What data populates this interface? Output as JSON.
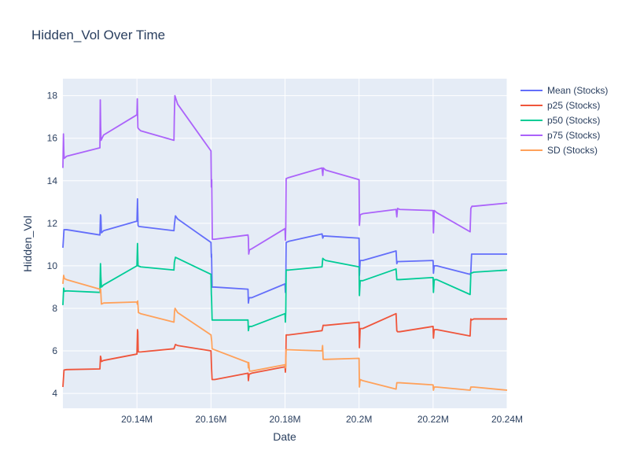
{
  "chart_data": {
    "type": "line",
    "title": "Hidden_Vol Over Time",
    "xlabel": "Date",
    "ylabel": "Hidden_Vol",
    "xlim": [
      20120000,
      20240000
    ],
    "ylim": [
      3.3,
      18.8
    ],
    "x_ticks": [
      {
        "value": 20140000,
        "label": "20.14M"
      },
      {
        "value": 20160000,
        "label": "20.16M"
      },
      {
        "value": 20180000,
        "label": "20.18M"
      },
      {
        "value": 20200000,
        "label": "20.2M"
      },
      {
        "value": 20220000,
        "label": "20.22M"
      },
      {
        "value": 20240000,
        "label": "20.24M"
      }
    ],
    "y_ticks": [
      {
        "value": 4,
        "label": "4"
      },
      {
        "value": 6,
        "label": "6"
      },
      {
        "value": 8,
        "label": "8"
      },
      {
        "value": 10,
        "label": "10"
      },
      {
        "value": 12,
        "label": "12"
      },
      {
        "value": 14,
        "label": "14"
      },
      {
        "value": 16,
        "label": "16"
      },
      {
        "value": 18,
        "label": "18"
      }
    ],
    "grid": true,
    "legend_position": "top-right",
    "colors": {
      "plot_bg": "#e5ecf6",
      "grid": "#ffffff",
      "text": "#2a3f5f"
    },
    "series": [
      {
        "name": "Mean (Stocks)",
        "color": "#636efa",
        "points": [
          [
            20120000,
            10.85
          ],
          [
            20120300,
            11.7
          ],
          [
            20121000,
            11.7
          ],
          [
            20130000,
            11.45
          ],
          [
            20130150,
            12.4
          ],
          [
            20130250,
            12.35
          ],
          [
            20130400,
            11.55
          ],
          [
            20131000,
            11.65
          ],
          [
            20140000,
            12.1
          ],
          [
            20140150,
            13.15
          ],
          [
            20140300,
            11.9
          ],
          [
            20140500,
            11.85
          ],
          [
            20150000,
            11.65
          ],
          [
            20150100,
            11.9
          ],
          [
            20150400,
            12.35
          ],
          [
            20151000,
            12.2
          ],
          [
            20160000,
            11.1
          ],
          [
            20160100,
            10.4
          ],
          [
            20160150,
            10.55
          ],
          [
            20160300,
            9.0
          ],
          [
            20161000,
            9.0
          ],
          [
            20170000,
            8.9
          ],
          [
            20170100,
            8.25
          ],
          [
            20170300,
            8.5
          ],
          [
            20171000,
            8.5
          ],
          [
            20180000,
            9.15
          ],
          [
            20180100,
            8.75
          ],
          [
            20180200,
            9.25
          ],
          [
            20180300,
            11.1
          ],
          [
            20181000,
            11.15
          ],
          [
            20190000,
            11.5
          ],
          [
            20190200,
            11.3
          ],
          [
            20190400,
            11.4
          ],
          [
            20191000,
            11.4
          ],
          [
            20200000,
            11.3
          ],
          [
            20200100,
            9.55
          ],
          [
            20200300,
            10.25
          ],
          [
            20201000,
            10.25
          ],
          [
            20210000,
            10.7
          ],
          [
            20210200,
            10.1
          ],
          [
            20210400,
            10.2
          ],
          [
            20211000,
            10.2
          ],
          [
            20220000,
            10.25
          ],
          [
            20220100,
            9.65
          ],
          [
            20220300,
            10.0
          ],
          [
            20221000,
            10.0
          ],
          [
            20230000,
            9.6
          ],
          [
            20230200,
            9.7
          ],
          [
            20230400,
            10.55
          ],
          [
            20231000,
            10.55
          ],
          [
            20240000,
            10.55
          ]
        ]
      },
      {
        "name": "p25 (Stocks)",
        "color": "#ef553b",
        "points": [
          [
            20120000,
            4.3
          ],
          [
            20120300,
            5.1
          ],
          [
            20121000,
            5.12
          ],
          [
            20130000,
            5.15
          ],
          [
            20130150,
            5.75
          ],
          [
            20130250,
            5.7
          ],
          [
            20130400,
            5.5
          ],
          [
            20131000,
            5.55
          ],
          [
            20140000,
            5.85
          ],
          [
            20140150,
            7.0
          ],
          [
            20140250,
            6.9
          ],
          [
            20140350,
            5.95
          ],
          [
            20141000,
            5.95
          ],
          [
            20150000,
            6.1
          ],
          [
            20150100,
            6.15
          ],
          [
            20150400,
            6.3
          ],
          [
            20151000,
            6.25
          ],
          [
            20160000,
            6.0
          ],
          [
            20160150,
            5.2
          ],
          [
            20160300,
            4.65
          ],
          [
            20161000,
            4.65
          ],
          [
            20170000,
            4.95
          ],
          [
            20170100,
            4.6
          ],
          [
            20170300,
            4.9
          ],
          [
            20171000,
            4.95
          ],
          [
            20180000,
            5.25
          ],
          [
            20180100,
            5.0
          ],
          [
            20180200,
            5.3
          ],
          [
            20180300,
            6.75
          ],
          [
            20181000,
            6.75
          ],
          [
            20190000,
            6.95
          ],
          [
            20190300,
            7.2
          ],
          [
            20191000,
            7.2
          ],
          [
            20200000,
            7.35
          ],
          [
            20200100,
            6.15
          ],
          [
            20200300,
            7.05
          ],
          [
            20201000,
            7.05
          ],
          [
            20210000,
            7.75
          ],
          [
            20210200,
            6.95
          ],
          [
            20210400,
            6.9
          ],
          [
            20211000,
            6.9
          ],
          [
            20220000,
            7.15
          ],
          [
            20220100,
            6.6
          ],
          [
            20220300,
            7.0
          ],
          [
            20221000,
            7.0
          ],
          [
            20230000,
            6.7
          ],
          [
            20230200,
            7.5
          ],
          [
            20230400,
            7.45
          ],
          [
            20231000,
            7.5
          ],
          [
            20240000,
            7.5
          ]
        ]
      },
      {
        "name": "p50 (Stocks)",
        "color": "#00cc96",
        "points": [
          [
            20120000,
            8.15
          ],
          [
            20120200,
            8.95
          ],
          [
            20120400,
            8.8
          ],
          [
            20121000,
            8.82
          ],
          [
            20130000,
            8.75
          ],
          [
            20130150,
            10.1
          ],
          [
            20130250,
            9.5
          ],
          [
            20130400,
            9.0
          ],
          [
            20131000,
            9.1
          ],
          [
            20140000,
            10.0
          ],
          [
            20140150,
            11.05
          ],
          [
            20140300,
            10.0
          ],
          [
            20141000,
            9.95
          ],
          [
            20150000,
            9.8
          ],
          [
            20150100,
            10.15
          ],
          [
            20150400,
            10.4
          ],
          [
            20151000,
            10.35
          ],
          [
            20160000,
            9.6
          ],
          [
            20160100,
            8.65
          ],
          [
            20160150,
            8.5
          ],
          [
            20160300,
            7.45
          ],
          [
            20161000,
            7.45
          ],
          [
            20170000,
            7.45
          ],
          [
            20170100,
            6.95
          ],
          [
            20170300,
            7.15
          ],
          [
            20171000,
            7.15
          ],
          [
            20180000,
            7.75
          ],
          [
            20180100,
            7.35
          ],
          [
            20180200,
            7.85
          ],
          [
            20180300,
            9.8
          ],
          [
            20181000,
            9.8
          ],
          [
            20190000,
            9.95
          ],
          [
            20190200,
            10.35
          ],
          [
            20190500,
            10.3
          ],
          [
            20191000,
            10.25
          ],
          [
            20200000,
            9.95
          ],
          [
            20200100,
            8.6
          ],
          [
            20200300,
            9.3
          ],
          [
            20201000,
            9.3
          ],
          [
            20210000,
            9.85
          ],
          [
            20210200,
            9.35
          ],
          [
            20211000,
            9.35
          ],
          [
            20220000,
            9.45
          ],
          [
            20220100,
            8.75
          ],
          [
            20220300,
            9.35
          ],
          [
            20221000,
            9.35
          ],
          [
            20230000,
            8.65
          ],
          [
            20230200,
            9.65
          ],
          [
            20231000,
            9.7
          ],
          [
            20240000,
            9.8
          ]
        ]
      },
      {
        "name": "p75 (Stocks)",
        "color": "#ab63fa",
        "points": [
          [
            20120000,
            14.6
          ],
          [
            20120150,
            16.2
          ],
          [
            20120250,
            15.4
          ],
          [
            20120350,
            15.05
          ],
          [
            20121000,
            15.15
          ],
          [
            20130000,
            15.55
          ],
          [
            20130100,
            17.8
          ],
          [
            20130200,
            16.55
          ],
          [
            20130300,
            15.9
          ],
          [
            20131000,
            16.15
          ],
          [
            20140000,
            17.1
          ],
          [
            20140100,
            17.85
          ],
          [
            20140250,
            16.5
          ],
          [
            20140400,
            16.45
          ],
          [
            20141000,
            16.35
          ],
          [
            20150000,
            15.9
          ],
          [
            20150100,
            17.0
          ],
          [
            20150250,
            18.0
          ],
          [
            20151000,
            17.6
          ],
          [
            20160000,
            15.4
          ],
          [
            20160100,
            13.7
          ],
          [
            20160200,
            14.05
          ],
          [
            20160350,
            11.25
          ],
          [
            20161000,
            11.25
          ],
          [
            20170000,
            11.45
          ],
          [
            20170100,
            11.3
          ],
          [
            20170200,
            10.55
          ],
          [
            20170400,
            10.75
          ],
          [
            20171000,
            10.8
          ],
          [
            20180000,
            11.75
          ],
          [
            20180100,
            11.2
          ],
          [
            20180200,
            11.85
          ],
          [
            20180300,
            14.1
          ],
          [
            20181000,
            14.15
          ],
          [
            20190000,
            14.6
          ],
          [
            20190200,
            14.25
          ],
          [
            20190350,
            14.6
          ],
          [
            20191000,
            14.5
          ],
          [
            20200000,
            14.05
          ],
          [
            20200100,
            11.9
          ],
          [
            20200300,
            12.4
          ],
          [
            20201000,
            12.45
          ],
          [
            20210000,
            12.65
          ],
          [
            20210200,
            12.3
          ],
          [
            20210400,
            12.7
          ],
          [
            20211000,
            12.65
          ],
          [
            20220000,
            12.6
          ],
          [
            20220100,
            11.55
          ],
          [
            20220300,
            12.6
          ],
          [
            20221000,
            12.5
          ],
          [
            20230000,
            11.6
          ],
          [
            20230200,
            12.7
          ],
          [
            20230500,
            12.8
          ],
          [
            20231000,
            12.8
          ],
          [
            20240000,
            12.95
          ]
        ]
      },
      {
        "name": "SD (Stocks)",
        "color": "#ffa15a",
        "points": [
          [
            20120000,
            9.15
          ],
          [
            20120200,
            9.55
          ],
          [
            20120400,
            9.4
          ],
          [
            20121000,
            9.35
          ],
          [
            20130000,
            8.9
          ],
          [
            20130100,
            8.75
          ],
          [
            20130200,
            8.9
          ],
          [
            20130400,
            8.2
          ],
          [
            20131000,
            8.25
          ],
          [
            20140000,
            8.3
          ],
          [
            20140100,
            8.2
          ],
          [
            20140200,
            8.35
          ],
          [
            20140400,
            7.8
          ],
          [
            20141000,
            7.75
          ],
          [
            20150000,
            7.35
          ],
          [
            20150150,
            7.85
          ],
          [
            20150300,
            8.0
          ],
          [
            20151000,
            7.8
          ],
          [
            20160000,
            6.75
          ],
          [
            20160200,
            6.45
          ],
          [
            20160300,
            6.1
          ],
          [
            20161000,
            6.05
          ],
          [
            20170000,
            5.45
          ],
          [
            20170100,
            5.2
          ],
          [
            20170200,
            5.45
          ],
          [
            20170400,
            5.05
          ],
          [
            20171000,
            5.05
          ],
          [
            20180000,
            5.35
          ],
          [
            20180100,
            5.2
          ],
          [
            20180200,
            5.3
          ],
          [
            20180300,
            6.05
          ],
          [
            20181000,
            6.05
          ],
          [
            20190000,
            6.0
          ],
          [
            20190150,
            6.25
          ],
          [
            20190300,
            5.6
          ],
          [
            20191000,
            5.6
          ],
          [
            20200000,
            5.65
          ],
          [
            20200100,
            4.3
          ],
          [
            20200300,
            4.65
          ],
          [
            20201000,
            4.6
          ],
          [
            20210000,
            4.2
          ],
          [
            20210200,
            4.5
          ],
          [
            20211000,
            4.5
          ],
          [
            20220000,
            4.4
          ],
          [
            20220100,
            4.15
          ],
          [
            20220300,
            4.3
          ],
          [
            20221000,
            4.3
          ],
          [
            20230000,
            4.15
          ],
          [
            20230200,
            4.3
          ],
          [
            20231000,
            4.3
          ],
          [
            20240000,
            4.15
          ]
        ]
      }
    ]
  }
}
